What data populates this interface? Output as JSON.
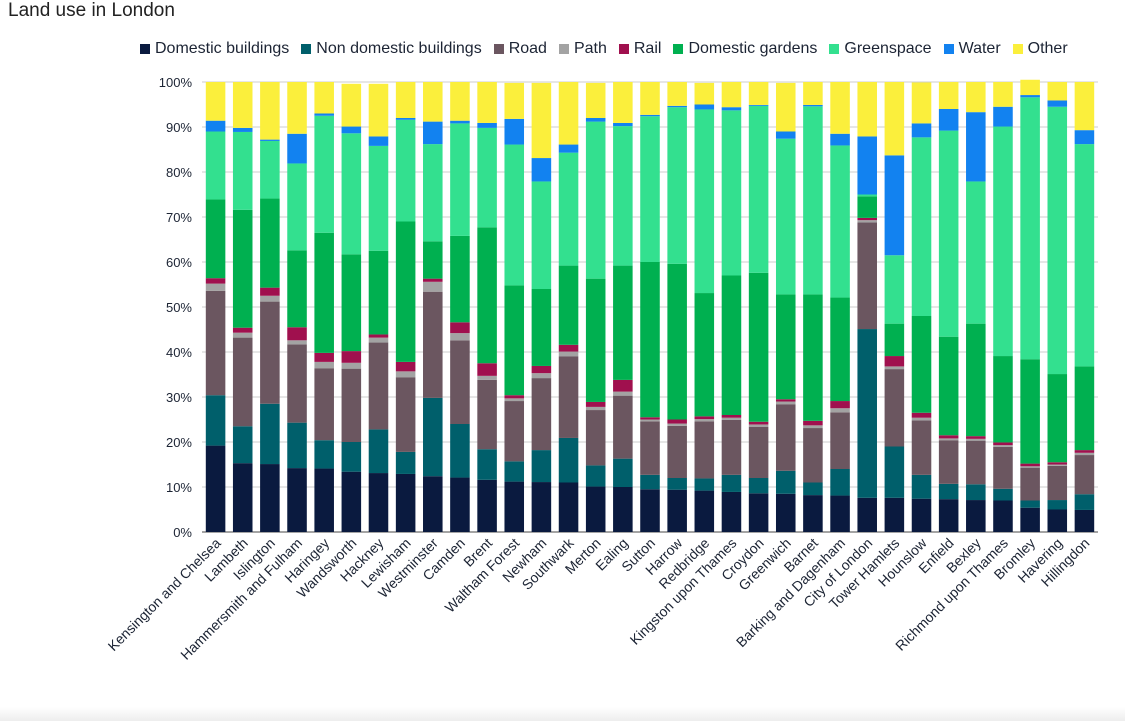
{
  "page": {
    "title": "Land use in London"
  },
  "chart_data": {
    "type": "bar",
    "stacked": true,
    "title": "Land use in London",
    "ylim": [
      0,
      100
    ],
    "yticks": [
      "0%",
      "10%",
      "20%",
      "30%",
      "40%",
      "50%",
      "60%",
      "70%",
      "80%",
      "90%",
      "100%"
    ],
    "grid": true,
    "legend_position": "top",
    "categories": [
      "Kensington and Chelsea",
      "Lambeth",
      "Islington",
      "Hammersmith and Fulham",
      "Haringey",
      "Wandsworth",
      "Hackney",
      "Lewisham",
      "Westminster",
      "Camden",
      "Brent",
      "Waltham Forest",
      "Newham",
      "Southwark",
      "Merton",
      "Ealing",
      "Sutton",
      "Harrow",
      "Redbridge",
      "Kingston upon Thames",
      "Croydon",
      "Greenwich",
      "Barnet",
      "Barking and Dagenham",
      "City of London",
      "Tower Hamlets",
      "Hounslow",
      "Enfield",
      "Bexley",
      "Richmond upon Thames",
      "Bromley",
      "Havering",
      "Hillingdon"
    ],
    "series": [
      {
        "name": "Domestic buildings",
        "color": "#0a1a3f",
        "values": [
          19.2,
          15.3,
          15.1,
          14.2,
          14.1,
          13.4,
          13.1,
          12.9,
          12.4,
          12.1,
          11.6,
          11.2,
          11.1,
          11.0,
          10.1,
          10.0,
          9.5,
          9.4,
          9.2,
          8.9,
          8.6,
          8.5,
          8.2,
          8.1,
          7.6,
          7.6,
          7.4,
          7.3,
          7.1,
          7.0,
          5.4,
          5.0,
          4.9
        ]
      },
      {
        "name": "Non domestic buildings",
        "color": "#005f6b",
        "values": [
          11.2,
          8.2,
          13.4,
          10.1,
          6.3,
          6.6,
          9.7,
          4.9,
          17.4,
          11.9,
          6.8,
          4.5,
          7.1,
          9.9,
          4.7,
          6.3,
          3.2,
          2.6,
          2.7,
          3.8,
          3.4,
          5.1,
          2.8,
          5.9,
          37.5,
          11.4,
          5.3,
          3.4,
          3.5,
          2.6,
          1.6,
          2.1,
          3.5
        ]
      },
      {
        "name": "Road",
        "color": "#6b5660",
        "values": [
          23.2,
          19.7,
          22.7,
          17.4,
          16.0,
          16.3,
          19.3,
          16.6,
          23.6,
          18.6,
          15.4,
          13.4,
          16.0,
          18.1,
          12.3,
          14.0,
          11.9,
          11.6,
          12.7,
          12.2,
          11.4,
          14.8,
          12.1,
          12.6,
          23.7,
          17.2,
          12.1,
          9.7,
          9.7,
          9.3,
          7.3,
          7.6,
          8.7
        ]
      },
      {
        "name": "Path",
        "color": "#a3a3a3",
        "values": [
          1.6,
          1.1,
          1.3,
          0.9,
          1.4,
          1.3,
          1.1,
          1.3,
          2.2,
          1.6,
          0.9,
          0.6,
          1.1,
          1.1,
          0.7,
          0.9,
          0.4,
          0.5,
          0.5,
          0.5,
          0.5,
          0.6,
          0.6,
          0.9,
          0.5,
          0.6,
          0.6,
          0.4,
          0.4,
          0.4,
          0.3,
          0.3,
          0.5
        ]
      },
      {
        "name": "Rail",
        "color": "#a0104e",
        "values": [
          1.2,
          1.1,
          1.8,
          2.9,
          2.0,
          2.6,
          0.7,
          2.1,
          0.7,
          2.4,
          2.8,
          0.7,
          1.6,
          1.5,
          1.1,
          2.6,
          0.5,
          0.9,
          0.6,
          0.6,
          0.6,
          0.5,
          1.0,
          1.6,
          0.5,
          2.3,
          1.1,
          0.7,
          0.6,
          0.6,
          0.6,
          0.5,
          0.6
        ]
      },
      {
        "name": "Domestic gardens",
        "color": "#00b050",
        "values": [
          17.5,
          26.2,
          19.8,
          17.1,
          26.7,
          21.5,
          18.6,
          31.2,
          8.3,
          19.2,
          30.2,
          24.4,
          17.1,
          17.6,
          27.4,
          25.4,
          34.5,
          34.6,
          27.4,
          31.0,
          33.1,
          23.3,
          28.1,
          23.0,
          4.8,
          7.2,
          21.5,
          21.9,
          25.0,
          19.2,
          23.2,
          19.6,
          18.6
        ]
      },
      {
        "name": "Greenspace",
        "color": "#33e08f",
        "values": [
          15.1,
          17.3,
          12.8,
          19.3,
          26.0,
          26.9,
          23.3,
          22.6,
          21.6,
          25.0,
          22.1,
          31.3,
          23.9,
          25.1,
          34.9,
          31.0,
          32.4,
          34.8,
          40.8,
          36.7,
          37.1,
          34.6,
          41.8,
          33.8,
          0.4,
          15.2,
          39.7,
          45.8,
          31.6,
          51.0,
          58.2,
          59.4,
          49.4
        ]
      },
      {
        "name": "Water",
        "color": "#1282f0",
        "values": [
          2.4,
          0.9,
          0.3,
          6.6,
          0.5,
          1.5,
          2.1,
          0.4,
          5.0,
          0.6,
          1.1,
          5.7,
          5.2,
          1.8,
          0.8,
          0.7,
          0.3,
          0.3,
          1.1,
          0.7,
          0.2,
          1.6,
          0.3,
          2.6,
          12.9,
          22.2,
          3.1,
          4.8,
          15.4,
          4.4,
          0.5,
          1.4,
          3.1
        ]
      },
      {
        "name": "Other",
        "color": "#fbef3c",
        "values": [
          8.6,
          10.2,
          12.8,
          11.5,
          7.0,
          9.5,
          11.7,
          8.0,
          8.8,
          8.6,
          9.1,
          8.0,
          16.7,
          13.9,
          7.8,
          9.1,
          7.3,
          5.3,
          4.8,
          5.6,
          5.1,
          10.8,
          5.1,
          11.5,
          12.1,
          16.3,
          9.1,
          6.0,
          6.7,
          5.5,
          3.4,
          4.1,
          10.7
        ]
      }
    ]
  }
}
